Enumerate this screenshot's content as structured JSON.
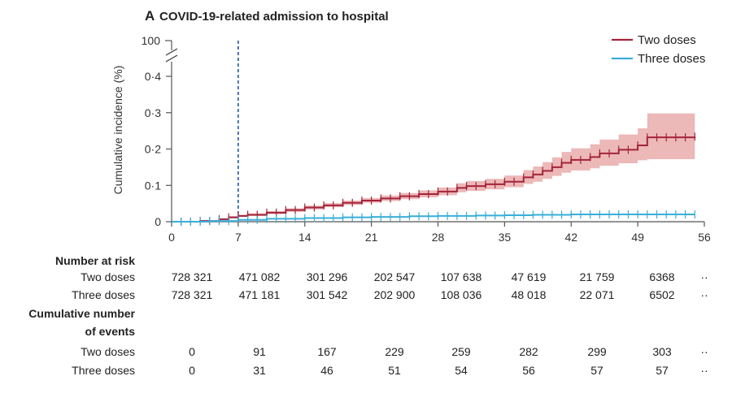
{
  "chart_data": {
    "type": "line",
    "panel_letter": "A",
    "title": "COVID-19-related admission to hospital",
    "ylabel": "Cumulative incidence (%)",
    "xlabel": "",
    "x_ticks": [
      0,
      7,
      14,
      21,
      28,
      35,
      42,
      49,
      56
    ],
    "x_tick_labels": [
      "0",
      "7",
      "14",
      "21",
      "28",
      "35",
      "42",
      "49",
      "56"
    ],
    "xlim": [
      0,
      56
    ],
    "y_ticks": [
      0,
      0.1,
      0.2,
      0.3,
      0.4
    ],
    "y_tick_labels": [
      "0",
      "0·1",
      "0·2",
      "0·3",
      "0·4"
    ],
    "y_break_label": "100",
    "ylim": [
      0,
      0.4
    ],
    "reference_line_x": 7,
    "colors": {
      "two_doses": "#a3243b",
      "three_doses": "#3aaed8",
      "two_doses_ci": "#e6a0a0",
      "reference": "#1f5a9a"
    },
    "series": [
      {
        "name": "Two doses",
        "key": "two_doses",
        "x": [
          0,
          3,
          5,
          6,
          7,
          8,
          10,
          12,
          14,
          16,
          18,
          20,
          22,
          24,
          26,
          28,
          30,
          31,
          33,
          35,
          37,
          38,
          39,
          40,
          41,
          42,
          44,
          45,
          47,
          49,
          50,
          55
        ],
        "values": [
          0,
          0.002,
          0.007,
          0.012,
          0.016,
          0.019,
          0.025,
          0.032,
          0.039,
          0.045,
          0.052,
          0.058,
          0.064,
          0.07,
          0.076,
          0.083,
          0.093,
          0.098,
          0.103,
          0.11,
          0.122,
          0.13,
          0.14,
          0.15,
          0.162,
          0.17,
          0.178,
          0.188,
          0.198,
          0.21,
          0.232,
          0.234
        ],
        "ci_upper": [
          0,
          0.003,
          0.009,
          0.015,
          0.019,
          0.023,
          0.029,
          0.037,
          0.044,
          0.051,
          0.058,
          0.065,
          0.072,
          0.079,
          0.086,
          0.094,
          0.106,
          0.112,
          0.118,
          0.127,
          0.142,
          0.152,
          0.164,
          0.177,
          0.192,
          0.202,
          0.213,
          0.226,
          0.24,
          0.257,
          0.298,
          0.303
        ],
        "ci_lower": [
          0,
          0.001,
          0.005,
          0.009,
          0.013,
          0.016,
          0.021,
          0.027,
          0.034,
          0.04,
          0.046,
          0.052,
          0.057,
          0.062,
          0.067,
          0.073,
          0.081,
          0.085,
          0.089,
          0.095,
          0.104,
          0.11,
          0.118,
          0.126,
          0.135,
          0.141,
          0.147,
          0.154,
          0.161,
          0.169,
          0.172,
          0.174
        ]
      },
      {
        "name": "Three doses",
        "key": "three_doses",
        "x": [
          0,
          4,
          7,
          10,
          14,
          18,
          21,
          25,
          28,
          32,
          35,
          38,
          42,
          46,
          49,
          55
        ],
        "values": [
          0,
          0.002,
          0.005,
          0.008,
          0.01,
          0.012,
          0.013,
          0.015,
          0.016,
          0.017,
          0.018,
          0.019,
          0.02,
          0.02,
          0.02,
          0.02
        ]
      }
    ],
    "tick_marks_x": [
      1,
      2,
      3,
      4,
      5,
      6,
      7,
      8,
      9,
      10,
      11,
      12,
      13,
      14,
      15,
      16,
      17,
      18,
      19,
      20,
      21,
      22,
      23,
      24,
      25,
      26,
      27,
      28,
      29,
      30,
      31,
      32,
      33,
      34,
      35,
      36,
      37,
      38,
      39,
      40,
      41,
      42,
      43,
      44,
      45,
      46,
      47,
      48,
      49,
      50,
      51,
      52,
      53,
      54,
      55
    ],
    "legend": [
      {
        "label": "Two doses",
        "key": "two_doses"
      },
      {
        "label": "Three doses",
        "key": "three_doses"
      }
    ],
    "legend_position": "top-right"
  },
  "risk_table": {
    "number_at_risk_label": "Number at risk",
    "cumulative_events_label_line1": "Cumulative number",
    "cumulative_events_label_line2": "of events",
    "rows_at_risk": [
      {
        "label": "Two doses",
        "values": [
          "728 321",
          "471 082",
          "301 296",
          "202 547",
          "107 638",
          "47 619",
          "21 759",
          "6368",
          "··"
        ]
      },
      {
        "label": "Three doses",
        "values": [
          "728 321",
          "471 181",
          "301 542",
          "202 900",
          "108 036",
          "48 018",
          "22 071",
          "6502",
          "··"
        ]
      }
    ],
    "rows_events": [
      {
        "label": "Two doses",
        "values": [
          "0",
          "91",
          "167",
          "229",
          "259",
          "282",
          "299",
          "303",
          "··"
        ]
      },
      {
        "label": "Three doses",
        "values": [
          "0",
          "31",
          "46",
          "51",
          "54",
          "56",
          "57",
          "57",
          "··"
        ]
      }
    ]
  }
}
